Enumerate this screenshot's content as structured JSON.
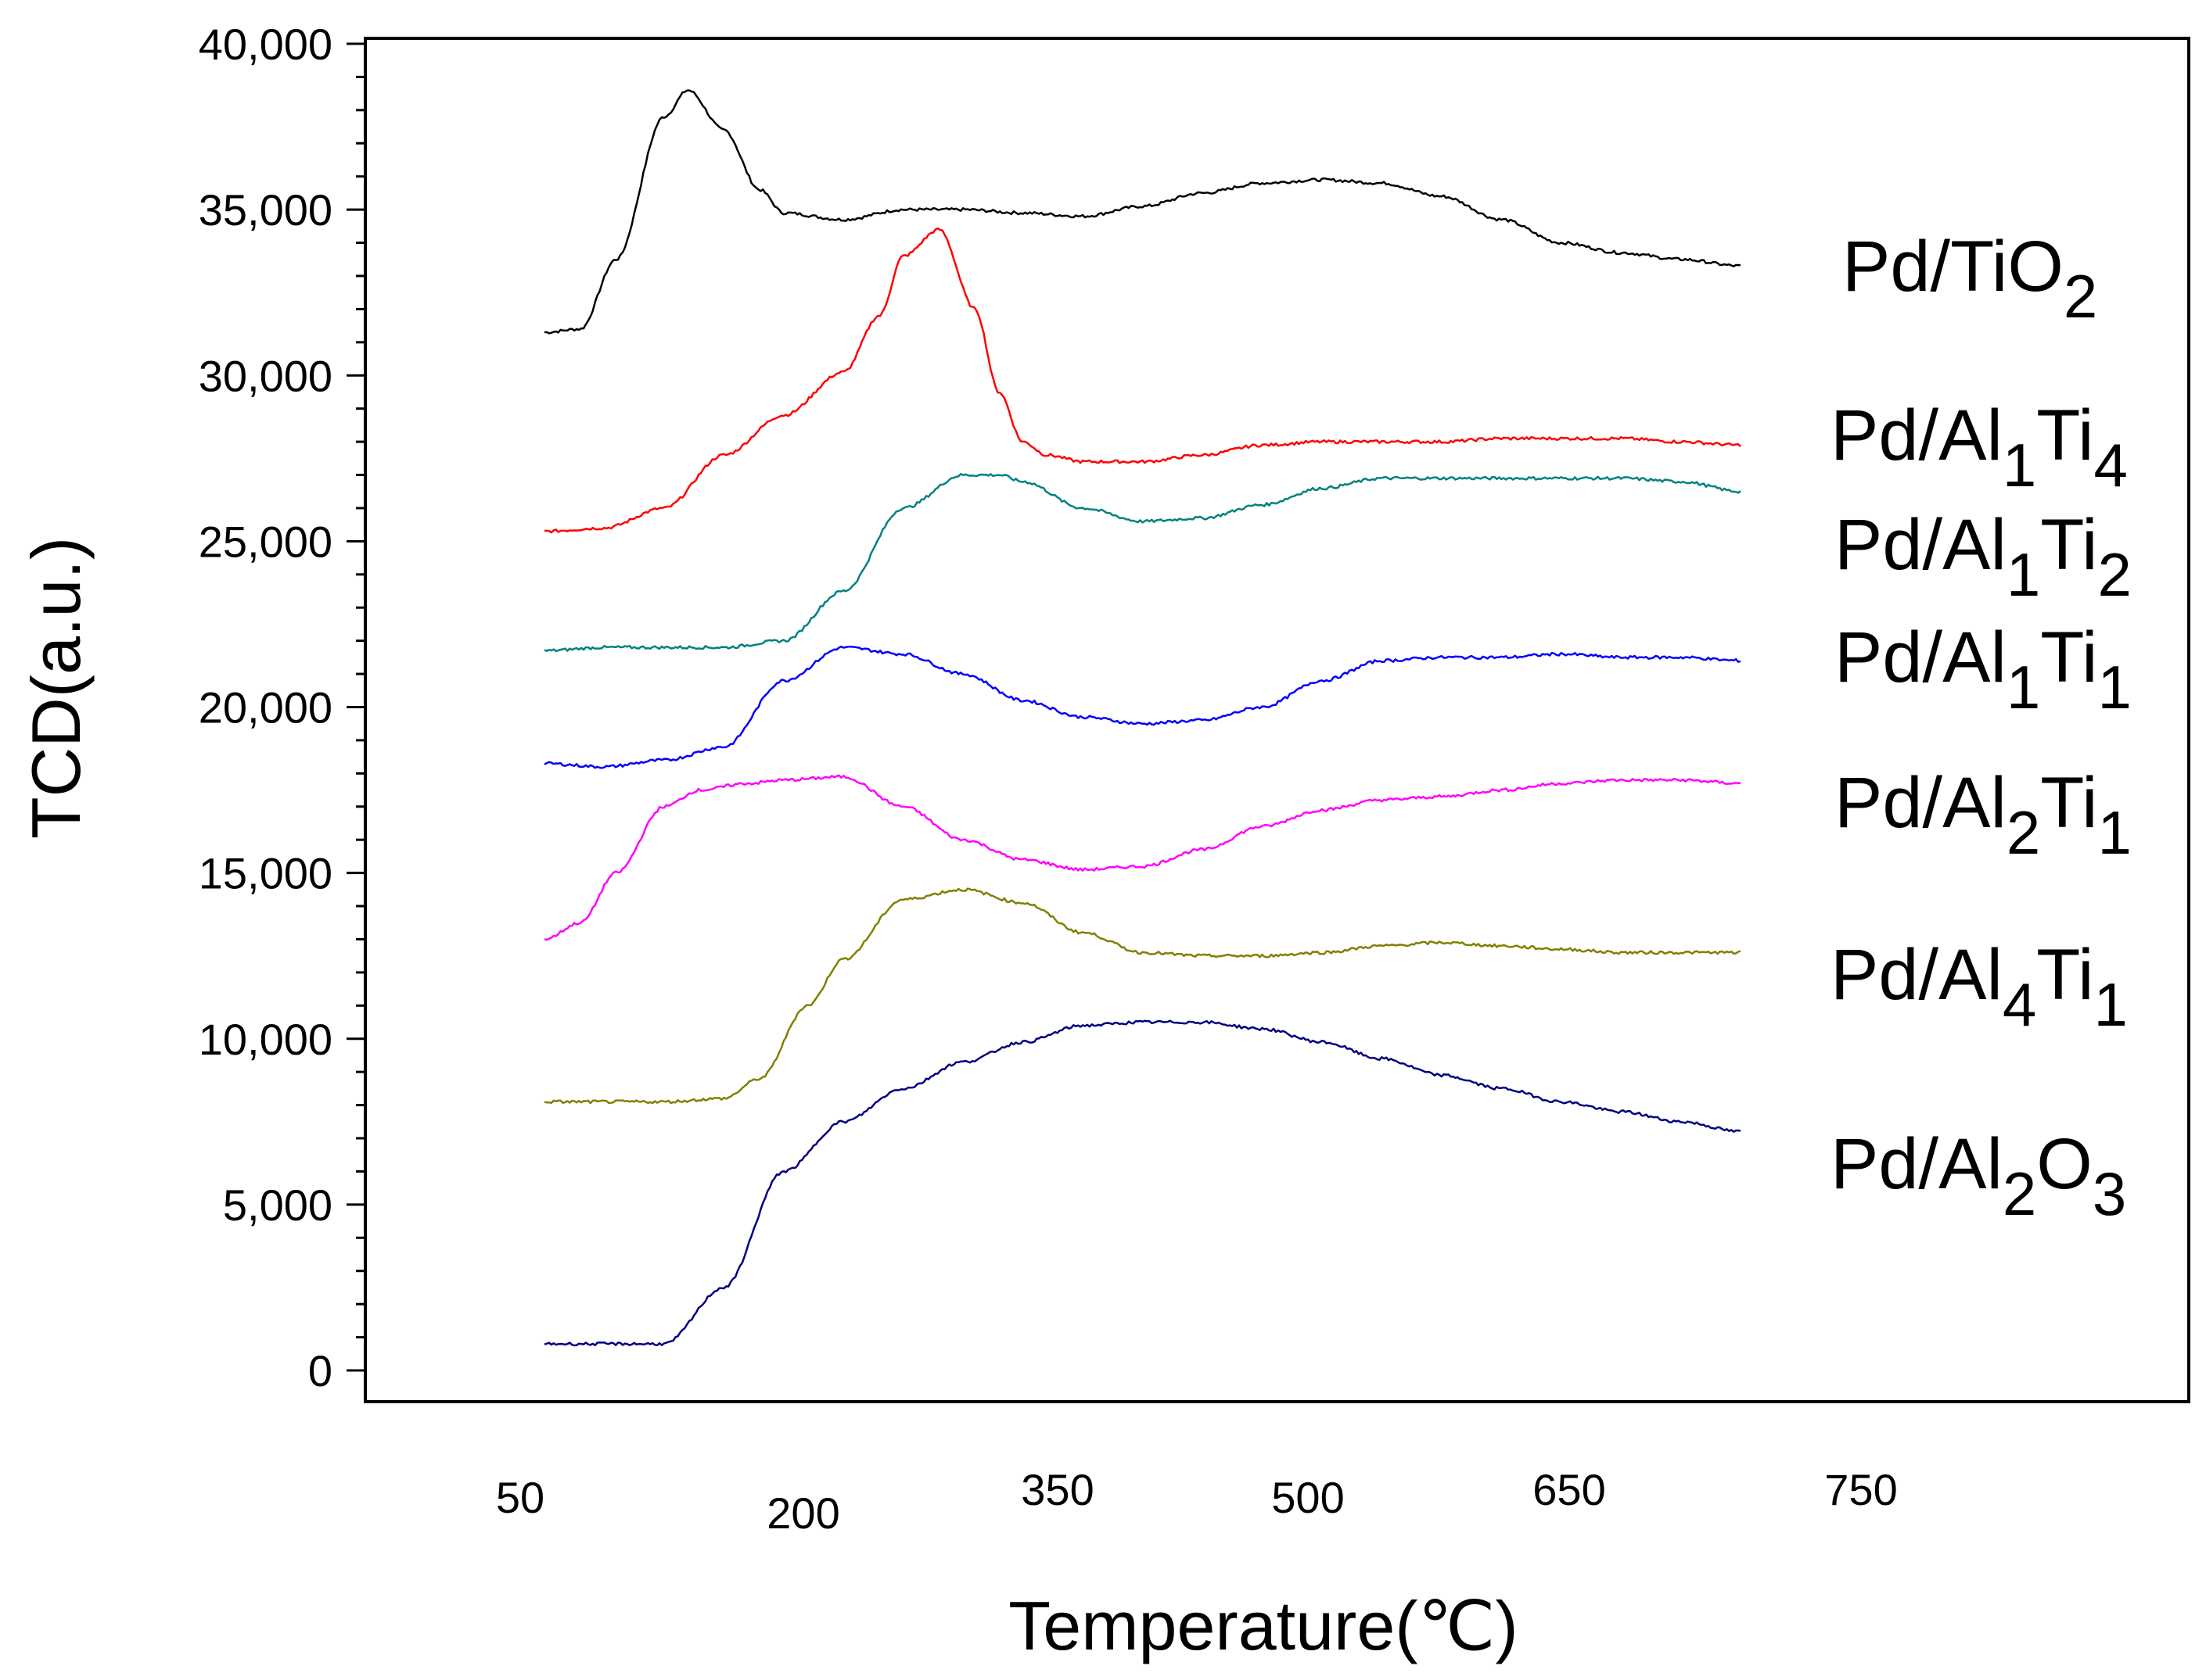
{
  "chart_data": {
    "type": "line",
    "title": "",
    "xlabel": "Temperature(℃)",
    "ylabel": "TCD(a.u.)",
    "x_tick_labels": [
      "50",
      "200",
      "350",
      "500",
      "650",
      "750"
    ],
    "y_ticks": [
      0,
      5000,
      10000,
      15000,
      20000,
      25000,
      30000,
      35000,
      40000
    ],
    "y_tick_labels": [
      "0",
      "5,000",
      "10,000",
      "15,000",
      "20,000",
      "25,000",
      "30,000",
      "35,000",
      "40,000"
    ],
    "ylim": [
      -1000,
      41000
    ],
    "x_axis_note": "x tick labels are placed at non-linear positions in the original figure; curves span roughly 50 to 800 ℃",
    "series": [
      {
        "name": "Pd/TiO2",
        "label_parts": [
          {
            "t": "Pd/TiO"
          },
          {
            "t": "2",
            "sub": true
          }
        ],
        "color": "#000000",
        "x": [
          0,
          0.03,
          0.06,
          0.1,
          0.12,
          0.15,
          0.18,
          0.2,
          0.25,
          0.3,
          0.35,
          0.4,
          0.45,
          0.5,
          0.55,
          0.6,
          0.65,
          0.7,
          0.75,
          0.8,
          0.85,
          0.9,
          0.95,
          1.0
        ],
        "y": [
          31300,
          31400,
          33500,
          37800,
          38600,
          37400,
          35600,
          34900,
          34700,
          35000,
          35000,
          34900,
          34800,
          35100,
          35500,
          35800,
          35900,
          35800,
          35400,
          34700,
          34000,
          33700,
          33500,
          33300
        ]
      },
      {
        "name": "Pd/Al1Ti4",
        "label_parts": [
          {
            "t": "Pd/Al"
          },
          {
            "t": "1",
            "sub": true
          },
          {
            "t": "Ti"
          },
          {
            "t": "4",
            "sub": true
          }
        ],
        "color": "#ff0000",
        "x": [
          0,
          0.05,
          0.1,
          0.15,
          0.2,
          0.25,
          0.28,
          0.3,
          0.33,
          0.36,
          0.38,
          0.4,
          0.42,
          0.45,
          0.5,
          0.55,
          0.6,
          0.65,
          0.7,
          0.75,
          0.8,
          0.85,
          0.9,
          0.95,
          1.0
        ],
        "y": [
          25300,
          25400,
          26000,
          27600,
          28800,
          30100,
          31800,
          33600,
          34400,
          32000,
          29500,
          28000,
          27600,
          27400,
          27400,
          27600,
          27900,
          28000,
          28000,
          28000,
          28100,
          28100,
          28100,
          28000,
          27900
        ]
      },
      {
        "name": "Pd/Al1Ti2",
        "label_parts": [
          {
            "t": "Pd/Al"
          },
          {
            "t": "1",
            "sub": true
          },
          {
            "t": "Ti"
          },
          {
            "t": "2",
            "sub": true
          }
        ],
        "color": "#008080",
        "x": [
          0,
          0.05,
          0.1,
          0.15,
          0.2,
          0.25,
          0.3,
          0.35,
          0.38,
          0.4,
          0.45,
          0.5,
          0.55,
          0.6,
          0.65,
          0.7,
          0.75,
          0.8,
          0.85,
          0.9,
          0.95,
          1.0
        ],
        "y": [
          21700,
          21800,
          21800,
          21800,
          22000,
          23500,
          26000,
          27000,
          27000,
          26800,
          26000,
          25600,
          25700,
          26100,
          26600,
          26900,
          26900,
          26900,
          26900,
          26900,
          26800,
          26500
        ]
      },
      {
        "name": "Pd/Al1Ti1",
        "label_parts": [
          {
            "t": "Pd/Al"
          },
          {
            "t": "1",
            "sub": true
          },
          {
            "t": "Ti"
          },
          {
            "t": "1",
            "sub": true
          }
        ],
        "color": "#0000ff",
        "x": [
          0,
          0.05,
          0.1,
          0.15,
          0.2,
          0.25,
          0.3,
          0.35,
          0.4,
          0.45,
          0.5,
          0.55,
          0.6,
          0.65,
          0.7,
          0.75,
          0.8,
          0.85,
          0.9,
          0.95,
          1.0
        ],
        "y": [
          18300,
          18200,
          18400,
          18800,
          20800,
          21800,
          21600,
          21000,
          20200,
          19700,
          19500,
          19600,
          20000,
          20800,
          21400,
          21500,
          21500,
          21600,
          21500,
          21500,
          21400
        ]
      },
      {
        "name": "Pd/Al2Ti1",
        "label_parts": [
          {
            "t": "Pd/Al"
          },
          {
            "t": "2",
            "sub": true
          },
          {
            "t": "Ti"
          },
          {
            "t": "1",
            "sub": true
          }
        ],
        "color": "#ff00ff",
        "x": [
          0,
          0.03,
          0.06,
          0.1,
          0.13,
          0.17,
          0.2,
          0.25,
          0.3,
          0.35,
          0.4,
          0.45,
          0.5,
          0.55,
          0.6,
          0.65,
          0.7,
          0.75,
          0.8,
          0.85,
          0.9,
          0.95,
          1.0
        ],
        "y": [
          13000,
          13500,
          15000,
          17000,
          17500,
          17700,
          17800,
          17900,
          17000,
          16000,
          15400,
          15100,
          15200,
          15700,
          16400,
          16900,
          17200,
          17300,
          17500,
          17700,
          17800,
          17800,
          17700
        ]
      },
      {
        "name": "Pd/Al4Ti1",
        "label_parts": [
          {
            "t": "Pd/Al"
          },
          {
            "t": "4",
            "sub": true
          },
          {
            "t": "Ti"
          },
          {
            "t": "1",
            "sub": true
          }
        ],
        "color": "#808000",
        "x": [
          0,
          0.05,
          0.1,
          0.15,
          0.18,
          0.22,
          0.25,
          0.3,
          0.35,
          0.4,
          0.45,
          0.5,
          0.55,
          0.6,
          0.65,
          0.7,
          0.75,
          0.8,
          0.85,
          0.9,
          0.95,
          1.0
        ],
        "y": [
          8100,
          8100,
          8100,
          8200,
          8800,
          11000,
          12400,
          14200,
          14500,
          14100,
          13200,
          12600,
          12500,
          12500,
          12600,
          12800,
          12900,
          12800,
          12700,
          12600,
          12600,
          12600
        ]
      },
      {
        "name": "Pd/Al2O3",
        "label_parts": [
          {
            "t": "Pd/Al"
          },
          {
            "t": "2",
            "sub": true
          },
          {
            "t": "O"
          },
          {
            "t": "3",
            "sub": true
          }
        ],
        "color": "#000080",
        "x": [
          0,
          0.05,
          0.1,
          0.15,
          0.2,
          0.25,
          0.3,
          0.35,
          0.4,
          0.45,
          0.5,
          0.55,
          0.6,
          0.65,
          0.7,
          0.75,
          0.8,
          0.85,
          0.9,
          0.95,
          1.0
        ],
        "y": [
          800,
          800,
          800,
          2500,
          6000,
          7500,
          8500,
          9300,
          9900,
          10400,
          10500,
          10500,
          10300,
          9900,
          9400,
          8900,
          8500,
          8100,
          7800,
          7500,
          7200
        ]
      }
    ]
  }
}
